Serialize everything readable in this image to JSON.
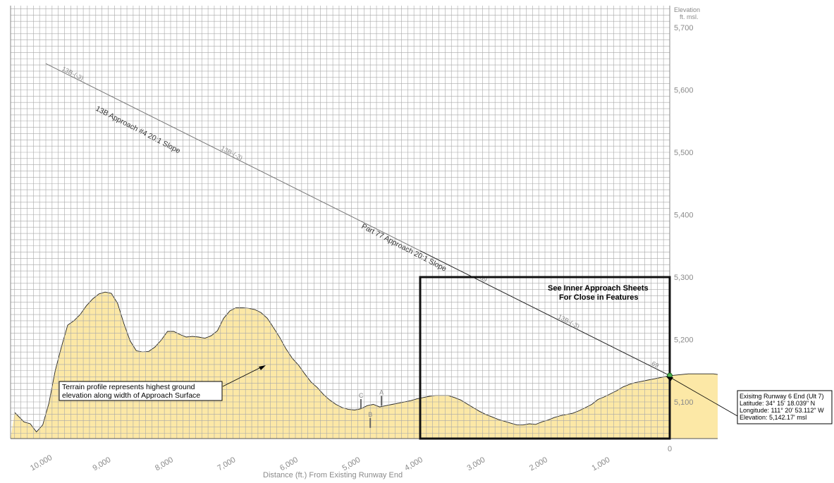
{
  "chart_data": {
    "type": "area",
    "xlabel": "Distance (ft.) From Existing Runway End",
    "ylabel_line1": "Elevation",
    "ylabel_line2": "ft. msl.",
    "xlim": [
      10500,
      -800
    ],
    "ylim": [
      5040,
      5750
    ],
    "x_ticks": [
      10000,
      9000,
      8000,
      7000,
      6000,
      5000,
      4000,
      3000,
      2000,
      1000,
      0
    ],
    "x_tick_labels": [
      "10,000",
      "9,000",
      "8,000",
      "7,000",
      "6,000",
      "5,000",
      "4,000",
      "3,000",
      "2,000",
      "1,000",
      "0"
    ],
    "y_ticks": [
      5100,
      5200,
      5300,
      5400,
      5500,
      5600,
      5700
    ],
    "y_tick_labels": [
      "5,100",
      "5,200",
      "5,300",
      "5,400",
      "5,500",
      "5,600",
      "5,700"
    ],
    "grid": true,
    "terrain": {
      "x": [
        10500,
        10350,
        10250,
        10150,
        10050,
        9950,
        9850,
        9750,
        9650,
        9550,
        9450,
        9350,
        9250,
        9150,
        9050,
        8950,
        8850,
        8750,
        8650,
        8550,
        8450,
        8350,
        8250,
        8150,
        8050,
        7950,
        7850,
        7750,
        7650,
        7550,
        7450,
        7350,
        7250,
        7150,
        7050,
        6950,
        6850,
        6750,
        6650,
        6550,
        6450,
        6350,
        6250,
        6150,
        6050,
        5950,
        5850,
        5750,
        5650,
        5550,
        5450,
        5350,
        5250,
        5150,
        5050,
        4950,
        4850,
        4750,
        4650,
        4550,
        4450,
        4350,
        4250,
        4150,
        4050,
        3950,
        3850,
        3750,
        3650,
        3550,
        3450,
        3350,
        3250,
        3150,
        3050,
        2950,
        2850,
        2750,
        2650,
        2550,
        2450,
        2350,
        2250,
        2150,
        2050,
        1950,
        1850,
        1750,
        1650,
        1550,
        1450,
        1350,
        1250,
        1150,
        1050,
        950,
        850,
        750,
        650,
        550,
        450,
        350,
        250,
        150,
        50,
        0,
        -100,
        -200,
        -300,
        -400,
        -500,
        -600,
        -700,
        -800
      ],
      "elevation": [
        5083,
        5068,
        5065,
        5052,
        5063,
        5098,
        5150,
        5188,
        5223,
        5230,
        5240,
        5254,
        5265,
        5273,
        5276,
        5274,
        5258,
        5226,
        5198,
        5182,
        5180,
        5181,
        5188,
        5199,
        5213,
        5213,
        5208,
        5204,
        5205,
        5204,
        5202,
        5206,
        5214,
        5234,
        5246,
        5251,
        5251,
        5250,
        5248,
        5243,
        5234,
        5219,
        5203,
        5185,
        5170,
        5159,
        5145,
        5132,
        5123,
        5112,
        5103,
        5096,
        5091,
        5088,
        5087,
        5089,
        5094,
        5096,
        5092,
        5094,
        5096,
        5098,
        5100,
        5102,
        5105,
        5107,
        5109,
        5110,
        5110,
        5110,
        5107,
        5103,
        5097,
        5091,
        5085,
        5080,
        5076,
        5072,
        5069,
        5066,
        5063,
        5063,
        5065,
        5064,
        5068,
        5071,
        5075,
        5078,
        5080,
        5082,
        5086,
        5091,
        5096,
        5104,
        5108,
        5113,
        5118,
        5124,
        5128,
        5131,
        5133,
        5135,
        5137,
        5139,
        5141,
        5142,
        5143,
        5144,
        5145,
        5145,
        5145,
        5145,
        5145,
        5144
      ]
    },
    "slopes": [
      {
        "name": "13B Approach #4 20:1 Slope",
        "x": [
          10000,
          0
        ],
        "elevation": [
          5642.17,
          5142.17
        ]
      },
      {
        "name": "Part 77 Approach 20:1 Slope",
        "x": [
          10000,
          0
        ],
        "elevation": [
          5642.17,
          5142.17
        ]
      }
    ],
    "inner_box": {
      "x": [
        4000,
        0
      ],
      "elevation": [
        5040,
        5300
      ],
      "label_line1": "See Inner Approach Sheets",
      "label_line2": "For Close in Features"
    },
    "runway_end": {
      "x": 0,
      "elevation": 5142.17,
      "info_lines": [
        "Exisitng Runway 6 End (Ult 7)",
        "Latitude: 34° 15' 18.039\" N",
        "Longitude: 111° 20' 53.112\" W",
        "Elevation: 5,142.17' msl"
      ]
    },
    "markers": [
      {
        "label": "C",
        "x": 4950,
        "elevation": 5091
      },
      {
        "label": "A",
        "x": 4620,
        "elevation": 5096
      },
      {
        "label": "B",
        "x": 4800,
        "elevation": 5072
      }
    ],
    "terrain_note_line1": "Terrain profile represents highest ground",
    "terrain_note_line2": "elevation along width of Approach Surface",
    "slope_tags": [
      {
        "text": "13B-(-3)",
        "x": 9750
      },
      {
        "text": "13B-(-3)",
        "x": 7200
      },
      {
        "text": "69",
        "x": 3050
      },
      {
        "text": "13B-(-3)",
        "x": 1800
      },
      {
        "text": "69",
        "x": 300
      }
    ]
  }
}
